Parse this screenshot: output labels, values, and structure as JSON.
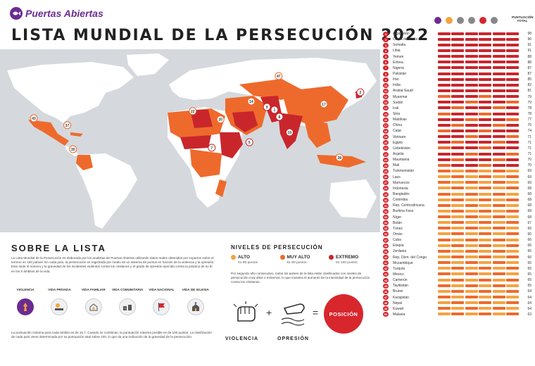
{
  "logo": {
    "text": "Puertas Abiertas"
  },
  "title": "LISTA MUNDIAL DE LA PERSECUCIÓN 2022",
  "about": {
    "heading": "SOBRE LA LISTA",
    "body": "La Lista Mundial de la Persecución es elaborada por los analistas de Puertas Abiertas utilizando datos reales obtenidos por expertos sobre el terreno en 150 países. En cada país, la persecución es registrada por medio de un sistema de puntos en función de la violencia y la opresión. Esto mide el número y la gravedad de los incidentes violentos contra los cristianos y el grado de opresión ejercida contra la práctica de su fe en los 5 ámbitos de la vida.",
    "categories": [
      {
        "label": "VIOLENCIA",
        "icon": "violence-icon"
      },
      {
        "label": "VIDA PRIVADA",
        "icon": "private-life-icon"
      },
      {
        "label": "VIDA FAMILIAR",
        "icon": "family-life-icon"
      },
      {
        "label": "VIDA COMUNITARIA",
        "icon": "community-life-icon"
      },
      {
        "label": "VIDA NACIONAL",
        "icon": "national-life-icon"
      },
      {
        "label": "VIDA DE IGLESIA",
        "icon": "church-life-icon"
      }
    ],
    "footnote": "La puntuación máxima para cada ámbito es de 16,7. Cuando se combinan, la puntuación máxima posible es de 100 puntos. La clasificación de cada país viene determinada por su puntuación total sobre 100, lo que da una indicación de la gravedad de la persecución."
  },
  "levels": {
    "heading": "NIVELES DE PERSECUCIÓN",
    "items": [
      {
        "name": "ALTO",
        "range": "41-60 puntos",
        "color": "#f4a340"
      },
      {
        "name": "MUY ALTO",
        "range": "61-80 puntos",
        "color": "#ee6a2c"
      },
      {
        "name": "EXTREMO",
        "range": "81-100 puntos",
        "color": "#c9262c"
      }
    ],
    "body": "Por segundo año consecutivo, todos los países de la lista están clasificados con niveles de persecución muy altos o extremos, lo que muestra el aumento de la intensidad de la persecución contra los cristianos."
  },
  "formula": {
    "a": "VIOLENCIA",
    "b": "OPRESIÓN",
    "result": "POSICIÓN",
    "plus": "+",
    "equals": "="
  },
  "list": {
    "score_header": "PUNTUACIÓN TOTAL",
    "header_icons": [
      "violence-icon",
      "private-life-icon",
      "family-life-icon",
      "community-life-icon",
      "national-life-icon",
      "church-life-icon"
    ],
    "countries": [
      {
        "rank": "1",
        "name": "Afganistán",
        "score": "98"
      },
      {
        "rank": "2",
        "name": "Corea del Norte",
        "score": "96"
      },
      {
        "rank": "3",
        "name": "Somalia",
        "score": "91"
      },
      {
        "rank": "4",
        "name": "Libia",
        "score": "91"
      },
      {
        "rank": "5",
        "name": "Yemen",
        "score": "88"
      },
      {
        "rank": "6",
        "name": "Eritrea",
        "score": "88"
      },
      {
        "rank": "7",
        "name": "Nigeria",
        "score": "87"
      },
      {
        "rank": "8",
        "name": "Pakistán",
        "score": "87"
      },
      {
        "rank": "9",
        "name": "Irán",
        "score": "85"
      },
      {
        "rank": "10",
        "name": "India",
        "score": "82"
      },
      {
        "rank": "11",
        "name": "Arabia Saudí",
        "score": "81"
      },
      {
        "rank": "12",
        "name": "Myanmar",
        "score": "79"
      },
      {
        "rank": "13",
        "name": "Sudán",
        "score": "79"
      },
      {
        "rank": "14",
        "name": "Irak",
        "score": "78"
      },
      {
        "rank": "15",
        "name": "Siria",
        "score": "78"
      },
      {
        "rank": "16",
        "name": "Maldivas",
        "score": "77"
      },
      {
        "rank": "17",
        "name": "China",
        "score": "76"
      },
      {
        "rank": "18",
        "name": "Catar",
        "score": "74"
      },
      {
        "rank": "19",
        "name": "Vietnam",
        "score": "71"
      },
      {
        "rank": "20",
        "name": "Egipto",
        "score": "71"
      },
      {
        "rank": "21",
        "name": "Uzbekistán",
        "score": "71"
      },
      {
        "rank": "22",
        "name": "Argelia",
        "score": "71"
      },
      {
        "rank": "23",
        "name": "Mauritania",
        "score": "70"
      },
      {
        "rank": "24",
        "name": "Mali",
        "score": "70"
      },
      {
        "rank": "25",
        "name": "Turkmenistán",
        "score": "69"
      },
      {
        "rank": "26",
        "name": "Laos",
        "score": "69"
      },
      {
        "rank": "27",
        "name": "Marruecos",
        "score": "69"
      },
      {
        "rank": "28",
        "name": "Indonesia",
        "score": "68"
      },
      {
        "rank": "29",
        "name": "Bangladés",
        "score": "68"
      },
      {
        "rank": "30",
        "name": "Colombia",
        "score": "68"
      },
      {
        "rank": "31",
        "name": "Rep. Centroafricana",
        "score": "68"
      },
      {
        "rank": "32",
        "name": "Burkina Faso",
        "score": "68"
      },
      {
        "rank": "33",
        "name": "Níger",
        "score": "68"
      },
      {
        "rank": "34",
        "name": "Bután",
        "score": "67"
      },
      {
        "rank": "35",
        "name": "Túnez",
        "score": "66"
      },
      {
        "rank": "36",
        "name": "Omán",
        "score": "66"
      },
      {
        "rank": "37",
        "name": "Cuba",
        "score": "66"
      },
      {
        "rank": "38",
        "name": "Etiopía",
        "score": "66"
      },
      {
        "rank": "39",
        "name": "Jordania",
        "score": "66"
      },
      {
        "rank": "40",
        "name": "Rep. Dem. del Congo",
        "score": "66"
      },
      {
        "rank": "41",
        "name": "Mozambique",
        "score": "65"
      },
      {
        "rank": "42",
        "name": "Turquía",
        "score": "65"
      },
      {
        "rank": "43",
        "name": "México",
        "score": "65"
      },
      {
        "rank": "44",
        "name": "Camerún",
        "score": "65"
      },
      {
        "rank": "45",
        "name": "Tayikistán",
        "score": "65"
      },
      {
        "rank": "46",
        "name": "Brunei",
        "score": "64"
      },
      {
        "rank": "47",
        "name": "Kazajistán",
        "score": "64"
      },
      {
        "rank": "48",
        "name": "Nepal",
        "score": "64"
      },
      {
        "rank": "49",
        "name": "Kuwait",
        "score": "64"
      },
      {
        "rank": "50",
        "name": "Malasia",
        "score": "63"
      }
    ]
  },
  "map": {
    "ocean_color": "#d5d9dd",
    "land_color": "#ffffff",
    "colors": {
      "alto": "#f4a340",
      "muy_alto": "#ee6a2c",
      "extremo": "#c9262c"
    },
    "markers": [
      {
        "label": "1",
        "level": "extremo",
        "x": 0.722,
        "y": 0.331
      },
      {
        "label": "2",
        "level": "extremo",
        "x": 0.948,
        "y": 0.235
      },
      {
        "label": "5",
        "level": "extremo",
        "x": 0.656,
        "y": 0.508
      },
      {
        "label": "7",
        "level": "extremo",
        "x": 0.557,
        "y": 0.538
      },
      {
        "label": "8",
        "level": "extremo",
        "x": 0.735,
        "y": 0.369
      },
      {
        "label": "9",
        "level": "extremo",
        "x": 0.702,
        "y": 0.315
      },
      {
        "label": "10",
        "level": "extremo",
        "x": 0.762,
        "y": 0.454
      },
      {
        "label": "14",
        "level": "muy_alto",
        "x": 0.661,
        "y": 0.285
      },
      {
        "label": "17",
        "level": "muy_alto",
        "x": 0.852,
        "y": 0.3
      },
      {
        "label": "20",
        "level": "muy_alto",
        "x": 0.58,
        "y": 0.383
      },
      {
        "label": "22",
        "level": "muy_alto",
        "x": 0.507,
        "y": 0.338
      },
      {
        "label": "28",
        "level": "muy_alto",
        "x": 0.893,
        "y": 0.592
      },
      {
        "label": "30",
        "level": "muy_alto",
        "x": 0.192,
        "y": 0.546
      },
      {
        "label": "37",
        "level": "muy_alto",
        "x": 0.177,
        "y": 0.415
      },
      {
        "label": "43",
        "level": "muy_alto",
        "x": 0.089,
        "y": 0.377
      },
      {
        "label": "47",
        "level": "muy_alto",
        "x": 0.733,
        "y": 0.146
      }
    ]
  }
}
